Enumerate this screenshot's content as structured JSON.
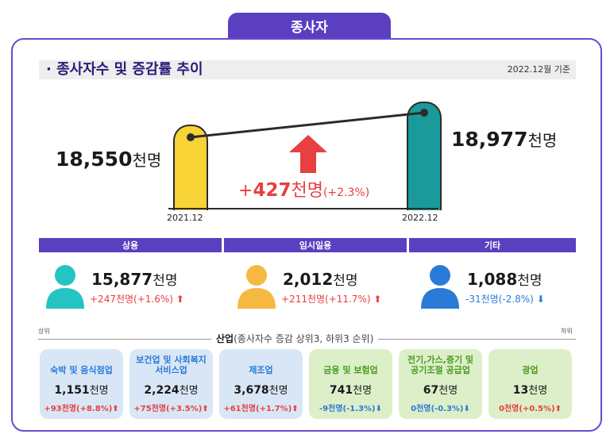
{
  "tab": "종사자",
  "section_title": "· 종사자수 및 증감률 추이",
  "ref_date": "2022.12월 기준",
  "left": {
    "value": "18,550",
    "unit": "천명",
    "year": "2021.12"
  },
  "right": {
    "value": "18,977",
    "unit": "천명",
    "year": "2022.12"
  },
  "change": {
    "sign": "+",
    "value": "427",
    "unit": "천명",
    "pct": "(+2.3%)"
  },
  "categories": [
    {
      "label": "상용",
      "value": "15,877",
      "unit": "천명",
      "change": "+247천명(+1.6%)",
      "dir": "up",
      "color": "#26c3c3"
    },
    {
      "label": "임시일용",
      "value": "2,012",
      "unit": "천명",
      "change": "+211천명(+11.7%)",
      "dir": "up",
      "color": "#f5b942"
    },
    {
      "label": "기타",
      "value": "1,088",
      "unit": "천명",
      "change": "-31천명(-2.8%)",
      "dir": "down",
      "color": "#2a7ad8"
    }
  ],
  "industry": {
    "title": "산업",
    "subtitle": "(종사자수 증감 상위3, 하위3 순위)",
    "top_label": "상위",
    "bottom_label": "하위",
    "cards": [
      {
        "name": "숙박 및 음식점업",
        "value": "1,151",
        "unit": "천명",
        "change": "+93천명(+8.8%)",
        "dir": "up"
      },
      {
        "name": "보건업 및 사회복지 서비스업",
        "value": "2,224",
        "unit": "천명",
        "change": "+75천명(+3.5%)",
        "dir": "up"
      },
      {
        "name": "제조업",
        "value": "3,678",
        "unit": "천명",
        "change": "+61천명(+1.7%)",
        "dir": "up"
      },
      {
        "name": "금융 및 보험업",
        "value": "741",
        "unit": "천명",
        "change": "-9천명(-1.3%)",
        "dir": "down"
      },
      {
        "name": "전기,가스,증기 및 공기조절 공급업",
        "value": "67",
        "unit": "천명",
        "change": "0천명(-0.3%)",
        "dir": "down"
      },
      {
        "name": "광업",
        "value": "13",
        "unit": "천명",
        "change": "0천명(+0.5%)",
        "dir": "up"
      }
    ]
  },
  "colors": {
    "purple": "#5a3fc0",
    "yellow_pillar": "#f7d336",
    "teal_pillar": "#1a9a9a",
    "red": "#e74040",
    "blue": "#2a7ad8"
  }
}
